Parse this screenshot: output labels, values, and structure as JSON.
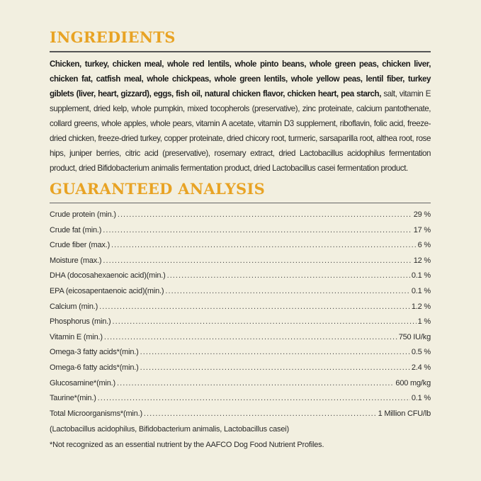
{
  "colors": {
    "background": "#f2efe0",
    "heading": "#e8a324",
    "text": "#2a2a2a"
  },
  "ingredients": {
    "title": "INGREDIENTS",
    "bold_text": "Chicken, turkey, chicken meal, whole red lentils, whole pinto beans, whole green peas, chicken liver, chicken fat, catfish meal, whole chickpeas, whole green lentils, whole yellow peas, lentil fiber, turkey giblets (liver, heart, gizzard), eggs, fish oil, natural chicken flavor, chicken heart, pea starch,",
    "regular_text": " salt, vitamin E supplement, dried kelp, whole pumpkin, mixed tocopherols (preservative), zinc proteinate, calcium pantothenate, collard greens, whole apples, whole pears, vitamin A acetate, vitamin D3 supplement, riboflavin, folic acid, freeze-dried chicken, freeze-dried turkey, copper proteinate, dried chicory root, turmeric, sarsaparilla root, althea root, rose hips, juniper berries, citric acid (preservative), rosemary extract, dried Lactobacillus acidophilus fermentation product, dried Bifidobacterium animalis fermentation product, dried Lactobacillus casei fermentation product."
  },
  "analysis": {
    "title": "GUARANTEED ANALYSIS",
    "rows": [
      {
        "label": "Crude protein (min.)",
        "value": "29 %"
      },
      {
        "label": "Crude fat (min.)",
        "value": "17 %"
      },
      {
        "label": "Crude fiber (max.)",
        "value": "6 %"
      },
      {
        "label": "Moisture (max.)",
        "value": "12 %"
      },
      {
        "label": "DHA (docosahexaenoic acid)(min.)",
        "value": "0.1 %"
      },
      {
        "label": "EPA (eicosapentaenoic acid)(min.)",
        "value": "0.1 %"
      },
      {
        "label": "Calcium (min.)",
        "value": "1.2 %"
      },
      {
        "label": "Phosphorus (min.)",
        "value": "1 %"
      },
      {
        "label": "Vitamin E (min.)",
        "value": "750 IU/kg"
      },
      {
        "label": "Omega-3 fatty acids*(min.)",
        "value": "0.5 %"
      },
      {
        "label": "Omega-6 fatty acids*(min.)",
        "value": "2.4 %"
      },
      {
        "label": "Glucosamine*(min.)",
        "value": "600 mg/kg"
      },
      {
        "label": "Taurine*(min.)",
        "value": "0.1 %"
      },
      {
        "label": "Total Microorganisms*(min.)",
        "value": "1 Million CFU/lb"
      }
    ],
    "microorganisms_note": "(Lactobacillus acidophilus, Bifidobacterium animalis, Lactobacillus casei)",
    "footnote": "*Not recognized as an essential nutrient by the AAFCO Dog Food Nutrient Profiles."
  }
}
